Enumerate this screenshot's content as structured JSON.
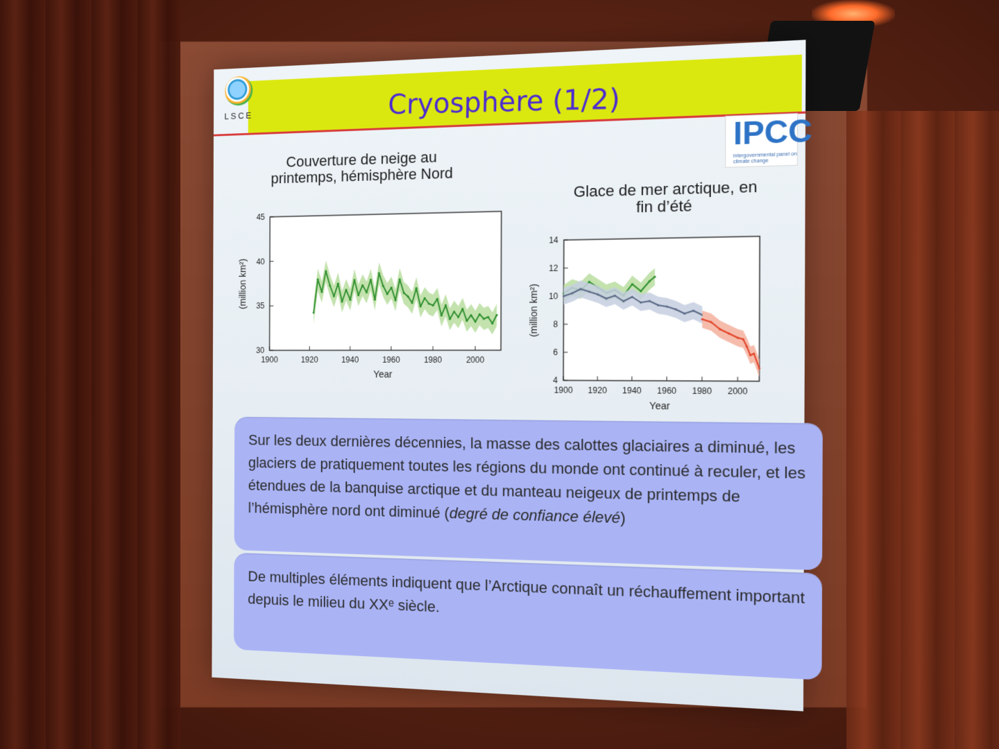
{
  "slide": {
    "logo_text": "LSCE",
    "title": "Cryosphère (1/2)",
    "ipcc_logo": {
      "main": "IPCC",
      "sub_line_1": "intergovernmental panel on",
      "sub_line_2": "climate change"
    },
    "callout_1": {
      "text": "Sur les deux dernières décennies, la masse des calottes glaciaires a diminué, les glaciers de pratiquement toutes les régions du monde ont continué à reculer, et les étendues de la banquise arctique et du manteau neigeux de printemps de l’hémisphère nord ont diminué (",
      "italic": "degré de confiance élevé",
      "suffix": ")"
    },
    "callout_2": {
      "text": "De multiples éléments indiquent que l’Arctique connaît un réchauffement important depuis le milieu du XXᵉ siècle."
    }
  },
  "chart_data": [
    {
      "type": "line",
      "title": "Couverture de neige au printemps, hémisphère Nord",
      "xlabel": "Year",
      "ylabel": "(million km²)",
      "xlim": [
        1900,
        2012
      ],
      "ylim": [
        30,
        45
      ],
      "x_ticks": [
        1900,
        1920,
        1940,
        1960,
        1980,
        2000
      ],
      "y_ticks": [
        30,
        35,
        40,
        45
      ],
      "series": [
        {
          "color": "#2f8f2f",
          "band_color": "#b9dd9f",
          "x": [
            1922,
            1924,
            1926,
            1928,
            1930,
            1932,
            1934,
            1936,
            1938,
            1940,
            1942,
            1944,
            1946,
            1948,
            1950,
            1952,
            1954,
            1956,
            1958,
            1960,
            1962,
            1964,
            1966,
            1968,
            1970,
            1972,
            1974,
            1976,
            1978,
            1980,
            1982,
            1984,
            1986,
            1988,
            1990,
            1992,
            1994,
            1996,
            1998,
            2000,
            2002,
            2004,
            2006,
            2008,
            2010
          ],
          "y": [
            34.2,
            37.9,
            36.5,
            38.8,
            37.2,
            36.0,
            37.4,
            35.4,
            36.7,
            35.6,
            37.8,
            36.1,
            37.2,
            36.4,
            37.8,
            35.6,
            38.5,
            37.1,
            36.2,
            36.9,
            35.5,
            37.8,
            36.3,
            35.9,
            35.2,
            36.8,
            34.8,
            35.7,
            35.1,
            34.9,
            35.6,
            33.8,
            34.9,
            33.4,
            34.2,
            33.6,
            34.5,
            33.2,
            33.8,
            33.1,
            33.9,
            33.4,
            33.6,
            32.9,
            33.8
          ]
        }
      ]
    },
    {
      "type": "line",
      "title": "Glace de mer arctique, en fin d’été",
      "xlabel": "Year",
      "ylabel": "(million km²)",
      "xlim": [
        1900,
        2012
      ],
      "ylim": [
        4,
        14
      ],
      "x_ticks": [
        1900,
        1920,
        1940,
        1960,
        1980,
        2000
      ],
      "y_ticks": [
        4,
        6,
        8,
        10,
        12,
        14
      ],
      "series": [
        {
          "color": "#2f8f2f",
          "band_color": "#b9dd9f",
          "x": [
            1900,
            1905,
            1910,
            1915,
            1920,
            1925,
            1930,
            1935,
            1940,
            1945,
            1950,
            1953
          ],
          "y": [
            10.2,
            10.6,
            10.4,
            11.0,
            10.6,
            10.2,
            10.4,
            10.0,
            10.8,
            10.3,
            11.0,
            11.3
          ]
        },
        {
          "color": "#5b6a86",
          "band_color": "#c6cfe0",
          "x": [
            1900,
            1905,
            1910,
            1915,
            1920,
            1925,
            1930,
            1935,
            1940,
            1945,
            1950,
            1955,
            1960,
            1965,
            1970,
            1975,
            1980
          ],
          "y": [
            10.0,
            10.2,
            10.5,
            10.3,
            10.1,
            9.8,
            10.0,
            9.6,
            9.9,
            9.5,
            9.6,
            9.3,
            9.2,
            9.0,
            8.7,
            8.9,
            8.6
          ]
        },
        {
          "color": "#e2442a",
          "band_color": "#f3b09e",
          "x": [
            1980,
            1985,
            1990,
            1995,
            2000,
            2003,
            2005,
            2007,
            2009,
            2012
          ],
          "y": [
            8.3,
            8.1,
            7.6,
            7.3,
            7.0,
            6.9,
            6.4,
            5.8,
            5.9,
            4.9
          ]
        }
      ]
    }
  ]
}
